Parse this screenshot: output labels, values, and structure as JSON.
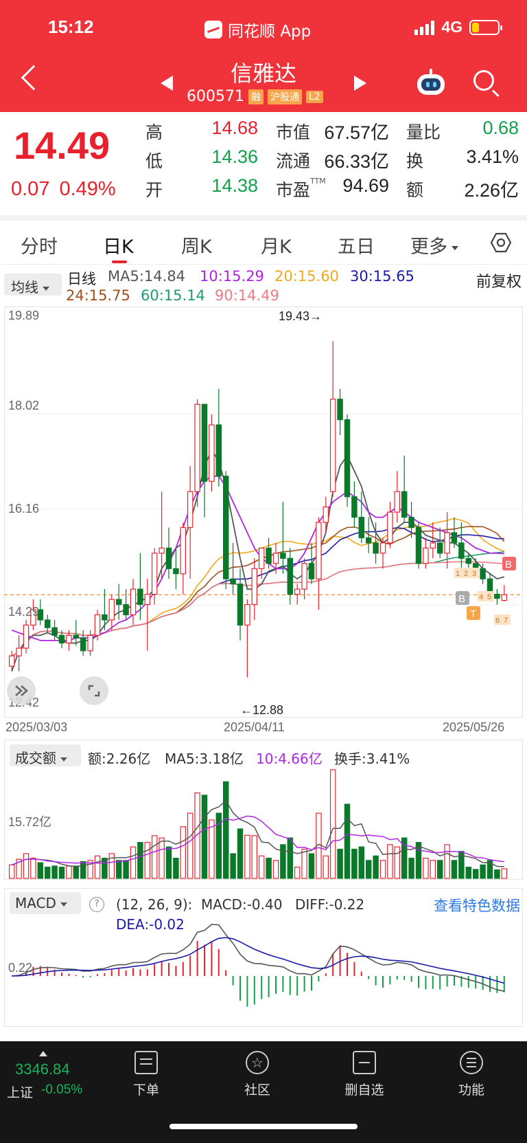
{
  "status_bar": {
    "time": "15:12",
    "app": "同花顺 App",
    "network": "4G"
  },
  "header": {
    "stock_name": "信雅达",
    "code": "600571",
    "tags": [
      "融",
      "沪股通",
      "L2"
    ]
  },
  "quote": {
    "price": "14.49",
    "change": "0.07",
    "change_pct": "0.49%",
    "high_label": "高",
    "high": "14.68",
    "low_label": "低",
    "low": "14.36",
    "open_label": "开",
    "open": "14.38",
    "mcap_label": "市值",
    "mcap": "67.57亿",
    "float_label": "流通",
    "float_cap": "66.33亿",
    "pe_label": "市盈",
    "pe_sup": "TTM",
    "pe": "94.69",
    "vr_label": "量比",
    "vr": "0.68",
    "turnover_label": "换",
    "turnover": "3.41%",
    "amount_label": "额",
    "amount": "2.26亿"
  },
  "tabs": [
    "分时",
    "日K",
    "周K",
    "月K",
    "五日",
    "更多"
  ],
  "active_tab": "日K",
  "ma_legend": {
    "button": "均线",
    "label": "日线",
    "ma5": "MA5:14.84",
    "ma10": "10:15.29",
    "ma20": "20:15.60",
    "ma30": "30:15.65",
    "ma24": "24:15.75",
    "ma60": "60:15.14",
    "ma90": "90:14.49",
    "adjust": "前复权"
  },
  "colors": {
    "up": "#e8222d",
    "down": "#0a7a2a",
    "ma5": "#555555",
    "ma10": "#b023e8",
    "ma20": "#f2a81d",
    "ma30": "#1a1aa8",
    "ma24": "#a04d1a",
    "ma60": "#1e9b6e",
    "ma90": "#f07a86"
  },
  "price_axis": {
    "top": "19.89",
    "mid1": "18.02",
    "mid2": "16.16",
    "mid3": "14.29",
    "bottom": "12.42"
  },
  "dates": [
    "2025/03/03",
    "2025/04/11",
    "2025/05/26"
  ],
  "extremes": {
    "high": "19.43→",
    "low": "←12.88"
  },
  "volume": {
    "button": "成交额",
    "amount": "额:2.26亿",
    "ma5": "MA5:3.18亿",
    "ma10": "10:4.66亿",
    "turnover": "换手:3.41%",
    "axis": "15.72亿"
  },
  "macd": {
    "button": "MACD",
    "params": "(12, 26, 9):",
    "macd": "MACD:-0.40",
    "diff": "DIFF:-0.22",
    "dea": "DEA:-0.02",
    "axis": "0.22",
    "feature_link": "查看特色数据"
  },
  "markers": [
    "B",
    "B",
    "T",
    "1",
    "2",
    "3",
    "4",
    "5",
    "6",
    "7"
  ],
  "bottom_bar": {
    "index_value": "3346.84",
    "index_name": "上证",
    "index_pct": "-0.05%",
    "nav": [
      {
        "label": "下单",
        "icon": "order-icon"
      },
      {
        "label": "社区",
        "icon": "community-icon"
      },
      {
        "label": "删自选",
        "icon": "remove-watchlist-icon"
      },
      {
        "label": "功能",
        "icon": "menu-icon"
      }
    ]
  },
  "chart_data": {
    "type": "candlestick",
    "ylim": [
      12.42,
      19.89
    ],
    "candles": [
      [
        13.1,
        13.4,
        13.0,
        13.3
      ],
      [
        13.3,
        13.7,
        13.0,
        13.45
      ],
      [
        13.45,
        14.0,
        13.35,
        13.9
      ],
      [
        13.9,
        14.4,
        13.8,
        14.2
      ],
      [
        14.2,
        14.4,
        13.9,
        14.0
      ],
      [
        14.0,
        14.1,
        13.75,
        13.85
      ],
      [
        13.85,
        14.0,
        13.6,
        13.7
      ],
      [
        13.7,
        13.8,
        13.45,
        13.55
      ],
      [
        13.55,
        13.8,
        13.4,
        13.7
      ],
      [
        13.7,
        14.0,
        13.5,
        13.65
      ],
      [
        13.65,
        13.8,
        13.3,
        13.4
      ],
      [
        13.4,
        13.8,
        13.3,
        13.7
      ],
      [
        13.7,
        14.2,
        13.6,
        14.1
      ],
      [
        14.1,
        14.6,
        13.8,
        14.0
      ],
      [
        14.0,
        14.5,
        13.8,
        14.4
      ],
      [
        14.4,
        14.7,
        14.0,
        14.3
      ],
      [
        14.3,
        14.6,
        14.0,
        14.1
      ],
      [
        14.1,
        14.8,
        13.9,
        14.6
      ],
      [
        14.6,
        15.3,
        14.0,
        14.3
      ],
      [
        14.3,
        14.8,
        13.4,
        14.5
      ],
      [
        14.5,
        15.4,
        14.3,
        15.3
      ],
      [
        15.3,
        16.5,
        14.8,
        15.4
      ],
      [
        15.4,
        15.8,
        14.8,
        15.0
      ],
      [
        15.0,
        15.4,
        14.6,
        14.9
      ],
      [
        14.9,
        15.9,
        14.5,
        15.8
      ],
      [
        15.8,
        17.0,
        14.8,
        16.5
      ],
      [
        16.5,
        18.3,
        16.2,
        18.2
      ],
      [
        18.2,
        18.2,
        16.0,
        16.7
      ],
      [
        16.7,
        18.0,
        16.5,
        17.8
      ],
      [
        17.8,
        18.5,
        16.6,
        16.8
      ],
      [
        16.8,
        16.9,
        14.6,
        14.8
      ],
      [
        14.8,
        15.5,
        14.5,
        14.7
      ],
      [
        14.7,
        15.0,
        13.6,
        13.9
      ],
      [
        13.9,
        14.4,
        12.88,
        14.3
      ],
      [
        14.3,
        15.2,
        14.0,
        15.0
      ],
      [
        15.0,
        15.4,
        14.8,
        15.4
      ],
      [
        15.4,
        15.6,
        15.0,
        15.1
      ],
      [
        15.1,
        15.5,
        14.9,
        15.3
      ],
      [
        15.3,
        16.3,
        14.9,
        15.2
      ],
      [
        15.2,
        15.4,
        14.3,
        14.5
      ],
      [
        14.5,
        14.7,
        14.3,
        14.6
      ],
      [
        14.6,
        15.2,
        14.4,
        15.1
      ],
      [
        15.1,
        15.5,
        14.7,
        14.8
      ],
      [
        14.8,
        16.0,
        14.2,
        15.9
      ],
      [
        15.9,
        16.4,
        15.7,
        16.2
      ],
      [
        16.5,
        19.43,
        16.4,
        18.3
      ],
      [
        18.3,
        18.5,
        17.6,
        17.9
      ],
      [
        17.9,
        18.0,
        16.2,
        16.4
      ],
      [
        16.4,
        16.7,
        15.8,
        16.0
      ],
      [
        16.0,
        16.5,
        15.5,
        15.6
      ],
      [
        15.6,
        16.0,
        15.3,
        15.5
      ],
      [
        15.5,
        15.9,
        15.1,
        15.3
      ],
      [
        15.3,
        15.6,
        15.0,
        15.5
      ],
      [
        15.5,
        16.3,
        15.4,
        16.1
      ],
      [
        16.1,
        16.9,
        15.9,
        16.5
      ],
      [
        16.5,
        17.2,
        15.9,
        16.0
      ],
      [
        16.0,
        16.3,
        15.6,
        15.8
      ],
      [
        15.8,
        15.9,
        15.0,
        15.1
      ],
      [
        15.1,
        15.6,
        15.0,
        15.4
      ],
      [
        15.4,
        15.9,
        15.2,
        15.5
      ],
      [
        15.5,
        15.8,
        15.2,
        15.3
      ],
      [
        15.3,
        16.1,
        15.0,
        15.7
      ],
      [
        15.7,
        16.0,
        15.4,
        15.5
      ],
      [
        15.5,
        15.9,
        15.0,
        15.2
      ],
      [
        15.2,
        15.3,
        14.9,
        15.1
      ],
      [
        15.1,
        15.2,
        14.9,
        15.0
      ],
      [
        15.0,
        15.1,
        14.7,
        14.8
      ],
      [
        14.8,
        14.9,
        14.4,
        14.5
      ],
      [
        14.5,
        14.6,
        14.3,
        14.42
      ],
      [
        14.38,
        14.68,
        14.36,
        14.49
      ]
    ],
    "ma_series": [
      {
        "name": "MA5",
        "values": [
          13.0,
          13.4,
          13.6,
          13.7,
          13.7,
          13.75,
          13.7,
          13.6,
          13.55,
          13.55,
          13.6,
          13.6,
          13.7,
          13.9,
          14.05,
          14.15,
          14.2,
          14.3,
          14.35,
          14.45,
          14.6,
          15.0,
          15.2,
          15.4,
          15.5,
          15.9,
          16.4,
          17.0,
          17.3,
          17.1,
          16.6,
          15.9,
          15.2,
          14.6,
          14.6,
          14.7,
          14.95,
          15.0,
          15.05,
          14.9,
          14.8,
          14.9,
          15.1,
          15.3,
          15.7,
          16.5,
          17.0,
          17.2,
          16.9,
          16.6,
          16.1,
          15.7,
          15.5,
          15.6,
          15.8,
          15.9,
          15.9,
          15.8,
          15.65,
          15.6,
          15.55,
          15.5,
          15.5,
          15.4,
          15.3,
          15.15,
          15.0,
          14.9,
          14.8,
          14.84
        ]
      },
      {
        "name": "MA10",
        "values": [
          13.8,
          13.75,
          13.7,
          13.65,
          13.6,
          13.6,
          13.6,
          13.6,
          13.6,
          13.65,
          13.65,
          13.65,
          13.7,
          13.75,
          13.85,
          13.95,
          14.0,
          14.1,
          14.2,
          14.35,
          14.55,
          14.8,
          15.1,
          15.4,
          15.8,
          16.2,
          16.5,
          16.7,
          16.8,
          16.8,
          16.6,
          16.3,
          16.0,
          15.7,
          15.4,
          15.2,
          15.1,
          15.0,
          15.0,
          15.0,
          15.1,
          15.3,
          15.6,
          15.9,
          16.1,
          16.3,
          16.4,
          16.5,
          16.4,
          16.3,
          16.1,
          16.0,
          16.0,
          16.1,
          16.2,
          16.1,
          16.0,
          15.9,
          15.85,
          15.8,
          15.75,
          15.7,
          15.65,
          15.6,
          15.5,
          15.4,
          15.35,
          15.3,
          15.3,
          15.29
        ]
      }
    ]
  }
}
